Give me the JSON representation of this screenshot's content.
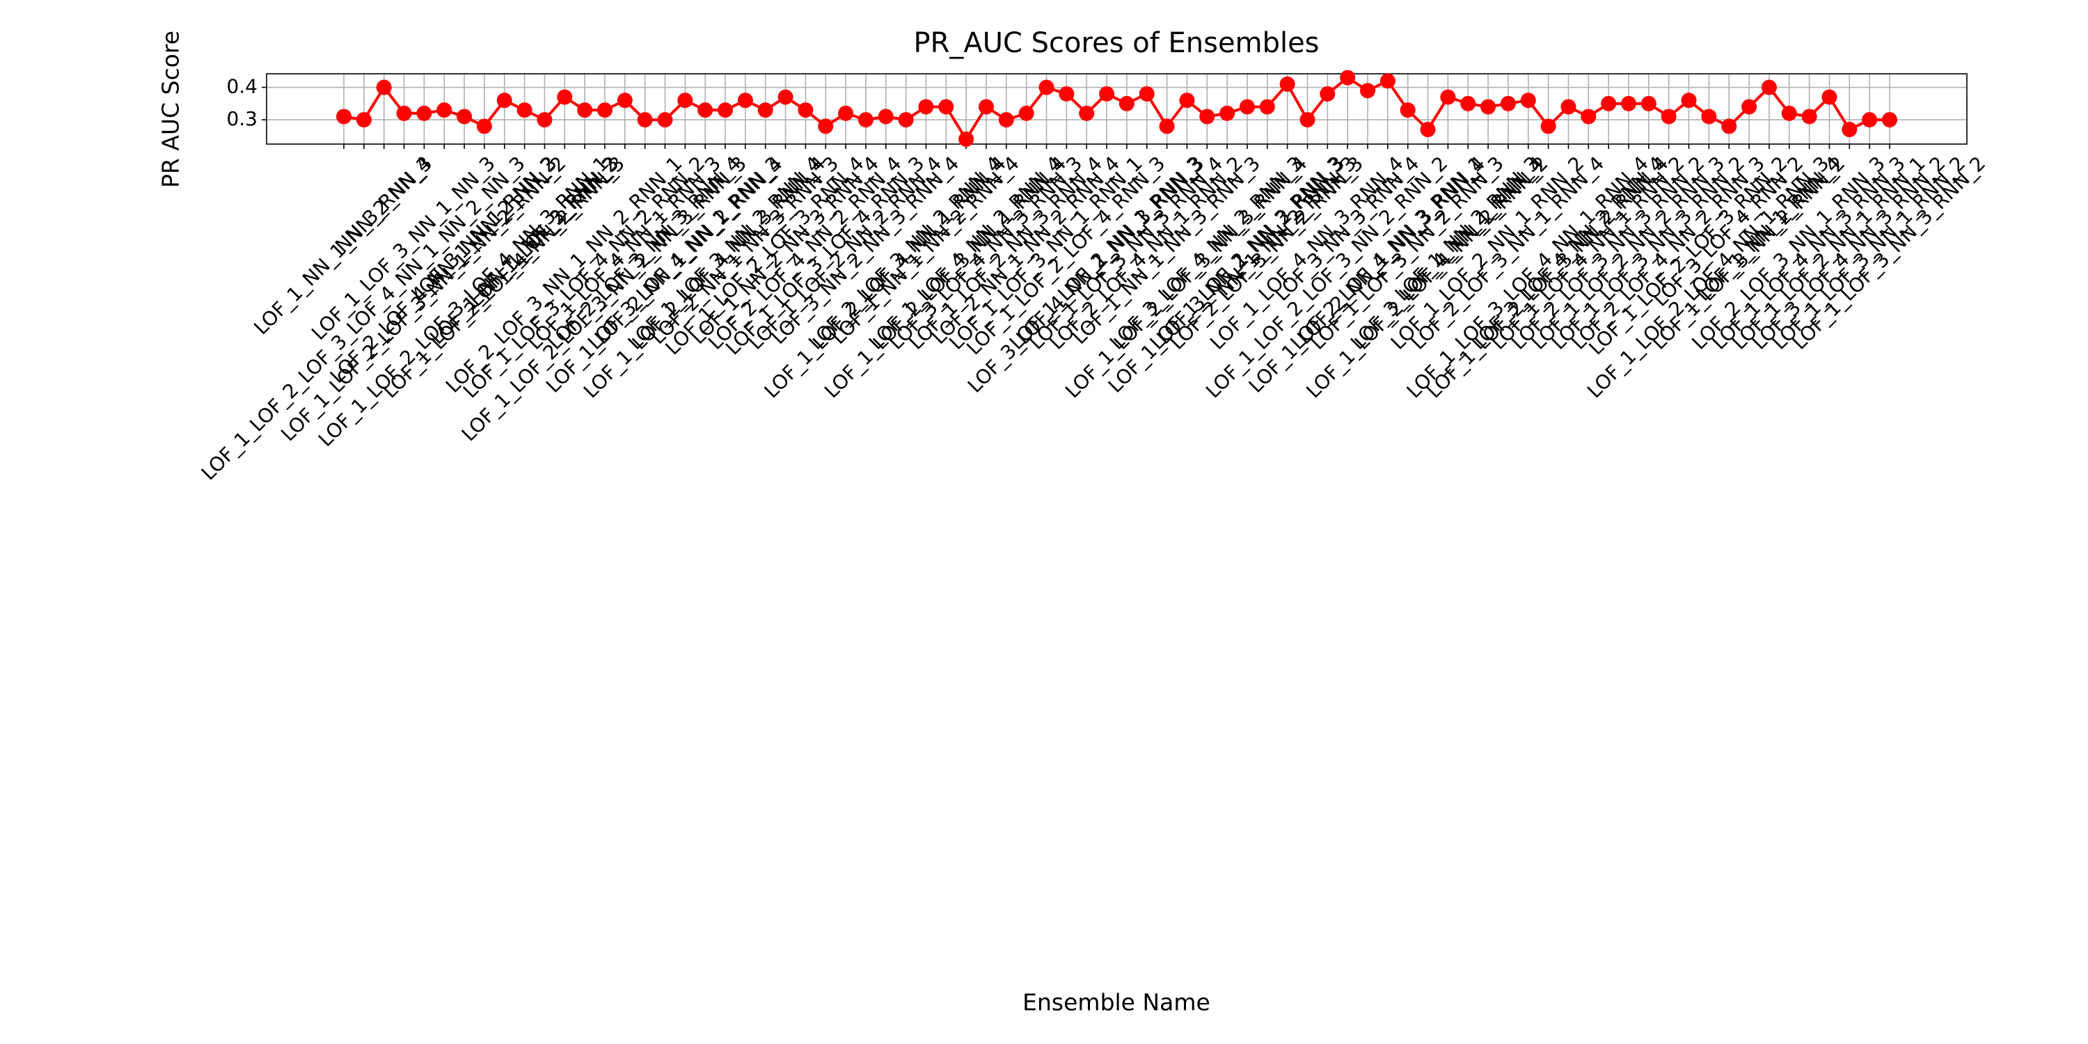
{
  "chart_data": {
    "type": "line",
    "title": "PR_AUC Scores of Ensembles",
    "xlabel": "Ensemble Name",
    "ylabel": "PR AUC Score",
    "color": "#ff0000",
    "grid": true,
    "ylim": [
      0.225,
      0.442
    ],
    "yticks": [
      0.3,
      0.4
    ],
    "categories": [
      "LOF_1_NN_1_NN_2_NN_3",
      "LOF_1_LOF_2_LOF_3_LOF_4_NN_1_NN_2_NN_3",
      "NN_3_RNN_4",
      "LOF_1_LOF_3_NN_1_NN_3",
      "LOF_1_LOF_2_LOF_3_NN_1_NN_2_RNN_2",
      "LOF_2_LOF_4_NN_1_NN_2_NN_3",
      "LOF_1_LOF_2_LOF_3_LOF_4_NN_3_RNN_1",
      "LOF_3_NN_1_RNN_2",
      "LOF_1_LOF_2_LOF_4_NN_2_RNN_3",
      "LOF_1_NN_1_NN_3_RNN_2",
      "LOF_1_LOF_2_RNN_3",
      "LOF_2_LOF_3_NN_1_NN_2_RNN_1",
      "LOF_1_LOF_3_LOF_4_NN_2_RNN_2",
      "LOF_1_LOF_2_LOF_3_NN_2_NN_3_RNN_3",
      "LOF_1_LOF_4_NN_1_RNN_3",
      "LOF_2_LOF_3_NN_3_RNN_4",
      "LOF_1_LOF_2_NN_1_NN_2_RNN_4",
      "LOF_3_LOF_4_NN_1_RNN_3",
      "LOF_1_LOF_2_LOF_4_NN_3_RNN_4",
      "LOF_1_LOF_3_NN_2_RNN_4",
      "LOF_2_NN_1_NN_3_RNN_3",
      "LOF_1_LOF_2_LOF_3_RNN_4",
      "LOF_1_NN_2_NN_3_RNN_4",
      "LOF_2_LOF_4_NN_2_RNN_4",
      "LOF_1_LOF_3_LOF_4_RNN_3",
      "LOF_1_LOF_2_NN_2_RNN_4",
      "LOF_3_NN_2_NN_3_RNN_4",
      "LOF_1_LOF_2_LOF_4_NN_1_RNN_4",
      "LOF_2_LOF_3_NN_2_RNN_4",
      "LOF_1_NN_1_NN_2_RNN_4",
      "LOF_1_LOF_2_LOF_3_NN_1_RNN_4",
      "LOF_1_LOF_4_NN_2_RNN_4",
      "LOF_3_LOF_4_NN_3_RNN_3",
      "LOF_1_LOF_2_NN_3_RNN_4",
      "LOF_2_NN_1_NN_2_RNN_4",
      "LOF_1_LOF_3_NN_1_RNN_1",
      "LOF_1_LOF_2_LOF_4_RNN_3",
      "LOF_3_LOF_4_NN_1_NN_3_RNN_3",
      "LOF_1_LOF_2_NN_1_RNN_3",
      "LOF_1_LOF_3_NN_3_RNN_4",
      "LOF_2_LOF_4_NN_1_RNN_2",
      "LOF_1_NN_1_NN_3_RNN_3",
      "LOF_1_LOF_2_LOF_3_NN_3_RNN_4",
      "LOF_3_LOF_4_NN_2_RNN_3",
      "LOF_1_LOF_3_NN_1_NN_2_RNN_3",
      "LOF_1_LOF_2_NN_3_RNN_3",
      "LOF_2_LOF_3_NN_2_RNN_3",
      "NN_1_NN_2_RNN_3",
      "LOF_1_LOF_4_NN_3_RNN_4",
      "LOF_1_LOF_2_LOF_3_NN_2_RNN_2",
      "LOF_3_NN_3_RNN_4",
      "LOF_1_LOF_2_NN_1_NN_3_RNN_4",
      "LOF_2_LOF_4_NN_3_RNN_1",
      "LOF_1_LOF_3_NN_2_RNN_3",
      "LOF_1_LOF_2_LOF_4_NN_2_RNN_2",
      "LOF_3_LOF_4_NN_1_RNN_4",
      "LOF_1_NN_2_RNN_3",
      "LOF_1_LOF_2_NN_1_RNN_2",
      "LOF_2_LOF_3_NN_1_RNN_4",
      "LOF_1_LOF_3_LOF_4_NN_1_RNN_4",
      "LOF_1_LOF_2_LOF_3_NN_2_RNN_4",
      "LOF_3_LOF_4_NN_2_RNN_4",
      "LOF_1_LOF_4_NN_1_RNN_2",
      "LOF_2_LOF_3_NN_3_RNN_2",
      "LOF_1_LOF_2_NN_2_RNN_3",
      "LOF_1_LOF_3_NN_3_RNN_2",
      "LOF_2_LOF_4_NN_2_RNN_3",
      "LOF_1_LOF_2_LOF_3_RNN_2",
      "LOF_1_LOF_2_LOF_4_NN_1_RNN_3",
      "LOF_3_LOF_4_RNN_2",
      "LOF_1_LOF_3_NN_2_RNN_2",
      "LOF_1_NN_1_RNN_4",
      "LOF_2_LOF_3_NN_1_RNN_3",
      "LOF_1_LOF_4_NN_3_RNN_3",
      "LOF_1_LOF_2_NN_1_RNN_1",
      "LOF_3_LOF_4_NN_3_RNN_2",
      "LOF_1_LOF_3_NN_1_RNN_2",
      "LOF_1_LOF_3_NN_3_RNN_2"
    ],
    "values": [
      0.31,
      0.3,
      0.4,
      0.32,
      0.32,
      0.33,
      0.31,
      0.28,
      0.36,
      0.33,
      0.3,
      0.37,
      0.33,
      0.33,
      0.36,
      0.3,
      0.3,
      0.36,
      0.33,
      0.33,
      0.36,
      0.33,
      0.37,
      0.33,
      0.28,
      0.32,
      0.3,
      0.31,
      0.3,
      0.34,
      0.34,
      0.24,
      0.34,
      0.3,
      0.32,
      0.4,
      0.38,
      0.32,
      0.38,
      0.35,
      0.38,
      0.28,
      0.36,
      0.31,
      0.32,
      0.34,
      0.34,
      0.41,
      0.3,
      0.38,
      0.43,
      0.39,
      0.42,
      0.33,
      0.27,
      0.37,
      0.35,
      0.34,
      0.35,
      0.36,
      0.28,
      0.34,
      0.31,
      0.35,
      0.35,
      0.35,
      0.31,
      0.36,
      0.31,
      0.28,
      0.34,
      0.4,
      0.32,
      0.31,
      0.37,
      0.27,
      0.3,
      0.3
    ]
  }
}
